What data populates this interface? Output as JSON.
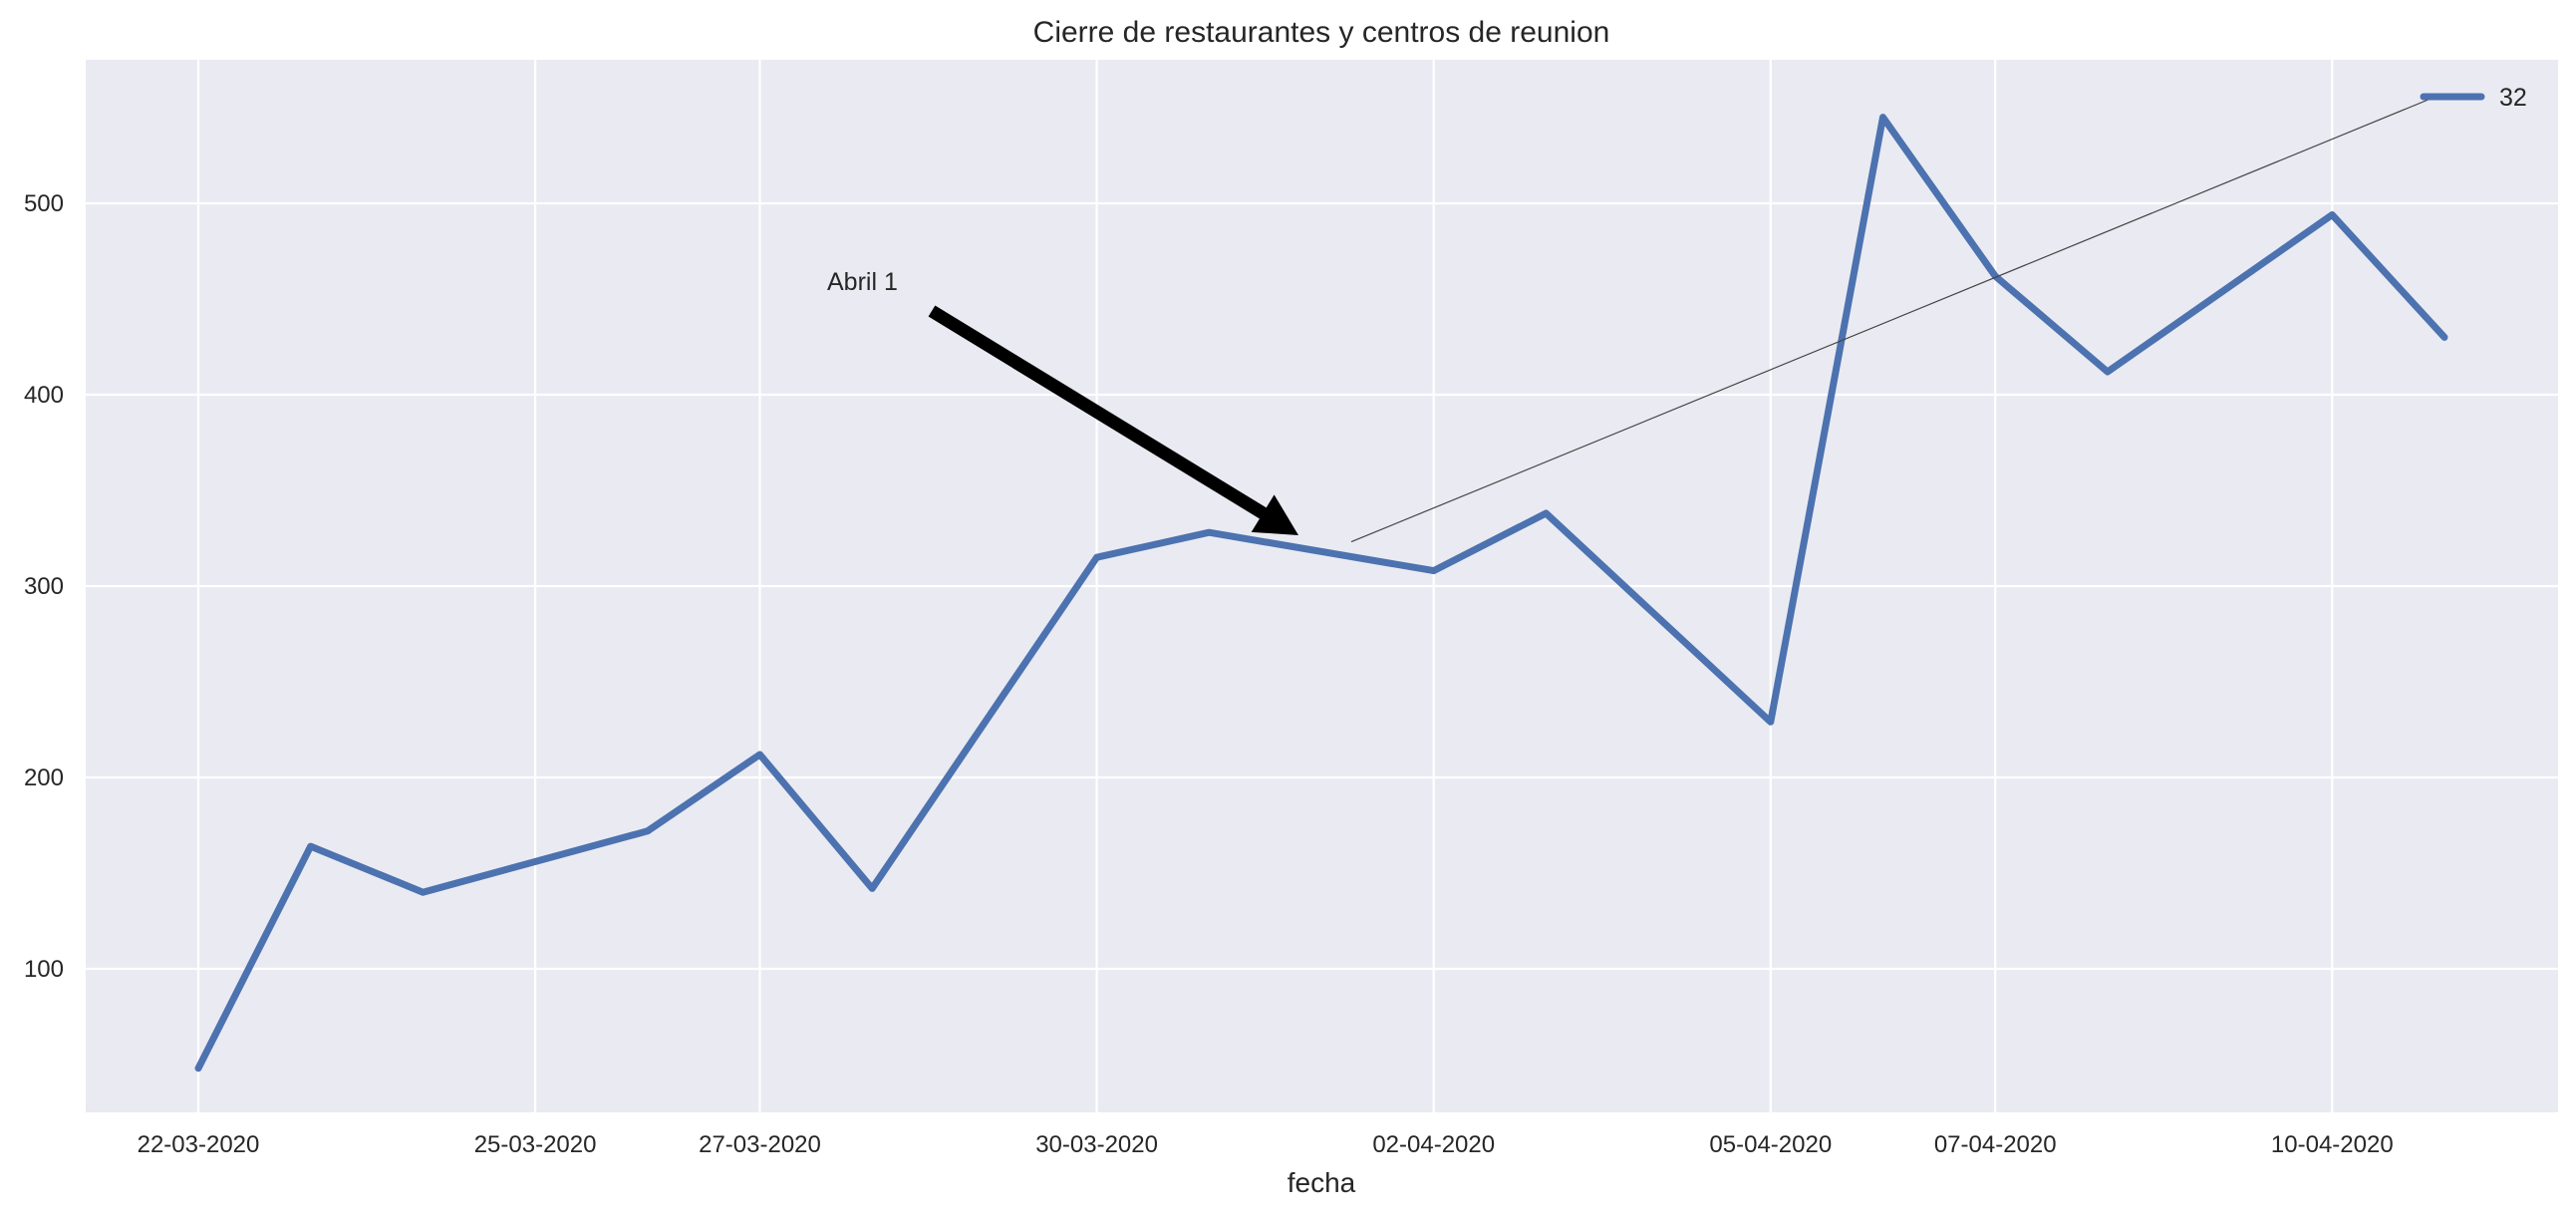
{
  "chart_data": {
    "type": "line",
    "title": "Cierre de restaurantes y centros de reunion",
    "xlabel": "fecha",
    "ylabel": "",
    "x": [
      "22-03-2020",
      "23-03-2020",
      "24-03-2020",
      "26-03-2020",
      "27-03-2020",
      "28-03-2020",
      "30-03-2020",
      "31-03-2020",
      "02-04-2020",
      "03-04-2020",
      "05-04-2020",
      "06-04-2020",
      "07-04-2020",
      "08-04-2020",
      "10-04-2020",
      "11-04-2020"
    ],
    "xticks": [
      "22-03-2020",
      "25-03-2020",
      "27-03-2020",
      "30-03-2020",
      "02-04-2020",
      "05-04-2020",
      "07-04-2020",
      "10-04-2020"
    ],
    "yticks": [
      100,
      200,
      300,
      400,
      500
    ],
    "ylim": [
      25,
      575
    ],
    "grid": true,
    "legend_position": "top-right",
    "series": [
      {
        "name": "32",
        "color": "#4c72b0",
        "values": [
          48,
          164,
          140,
          172,
          212,
          142,
          315,
          328,
          308,
          338,
          229,
          545,
          462,
          412,
          494,
          430
        ]
      }
    ],
    "annotation": {
      "text": "Abril 1",
      "target_index": 7.5,
      "target_value": 320
    }
  },
  "colors": {
    "plot_background": "#eaeaf2",
    "grid": "#ffffff",
    "line": "#4c72b0",
    "arrow": "#000000"
  }
}
